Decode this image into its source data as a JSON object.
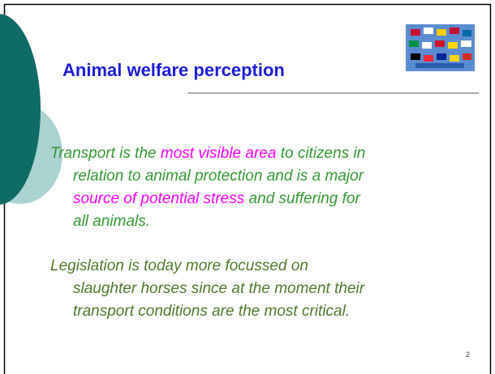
{
  "slide": {
    "title": "Animal welfare perception",
    "paragraphs": [
      {
        "color": "#339933",
        "lines": [
          [
            {
              "text": "Transport is the "
            },
            {
              "text": "most visible area",
              "color": "#ff00ff"
            },
            {
              "text": " to citizens in"
            }
          ],
          [
            {
              "text": "relation to animal protection and is a major"
            }
          ],
          [
            {
              "text": "source of potential stress",
              "color": "#ff00ff"
            },
            {
              "text": " and suffering for"
            }
          ],
          [
            {
              "text": "all animals."
            }
          ]
        ]
      },
      {
        "color": "#4f7a2a",
        "lines": [
          [
            {
              "text": "Legislation is today more focussed on"
            }
          ],
          [
            {
              "text": "slaughter horses since at the moment their"
            }
          ],
          [
            {
              "text": "transport conditions are the most critical."
            }
          ]
        ]
      }
    ],
    "page_number": "2"
  }
}
